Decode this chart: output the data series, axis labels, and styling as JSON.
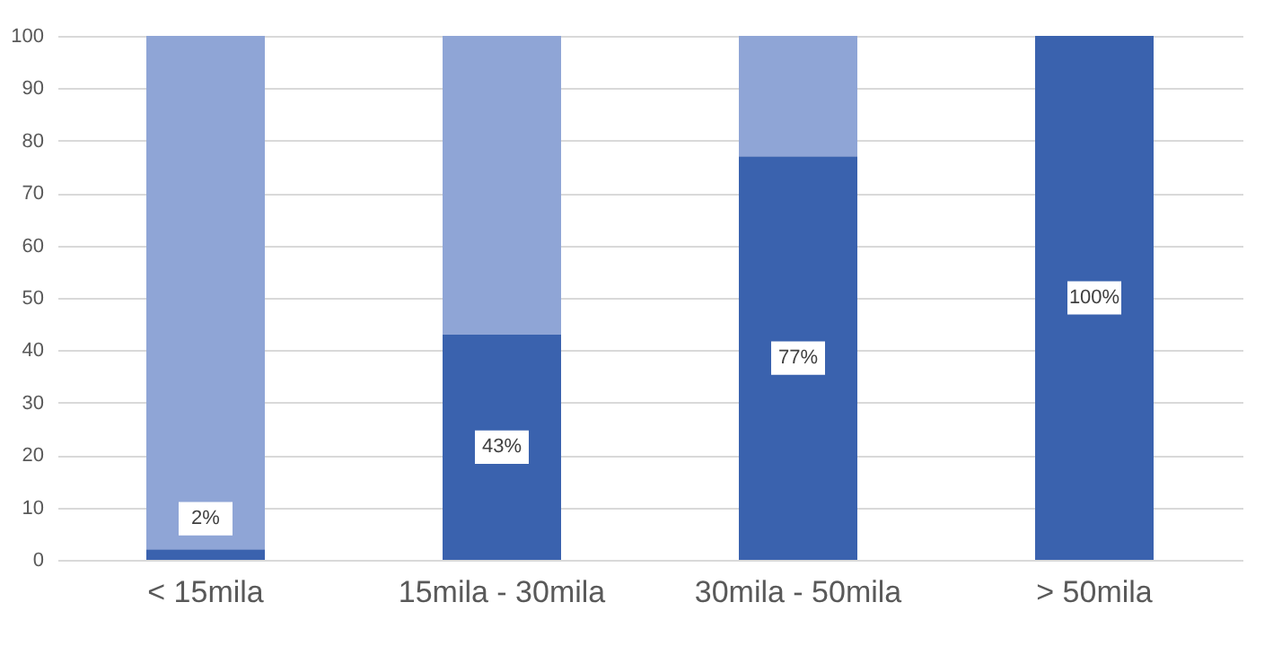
{
  "chart_data": {
    "type": "bar",
    "stacked": true,
    "categories": [
      "< 15mila",
      "15mila - 30mila",
      "30mila - 50mila",
      "> 50mila"
    ],
    "series": [
      {
        "color": "#3a62ae",
        "values": [
          2,
          43,
          77,
          100
        ],
        "value_labels": [
          "2%",
          "43%",
          "77%",
          "100%"
        ]
      },
      {
        "color": "#8fa5d6",
        "values": [
          98,
          57,
          23,
          0
        ]
      }
    ],
    "ylim": [
      0,
      100
    ],
    "yticks": [
      0,
      10,
      20,
      30,
      40,
      50,
      60,
      70,
      80,
      90,
      100
    ],
    "grid": "y"
  }
}
